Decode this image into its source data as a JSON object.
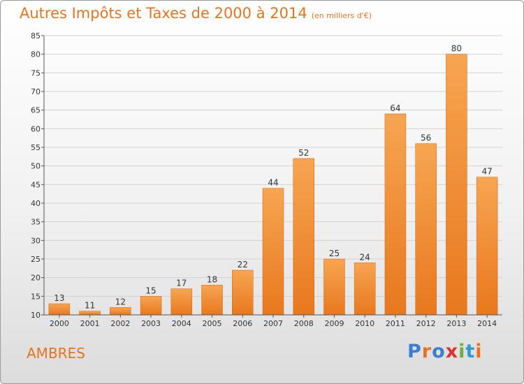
{
  "header": {
    "title": "Autres Impôts et Taxes de 2000 à 2014",
    "unit": "(en milliers d'€)"
  },
  "footer": {
    "commune": "AMBRES",
    "logo": "Proxiti"
  },
  "colors": {
    "bar_top": "#f7a552",
    "bar_bottom": "#e8781e",
    "accent": "#e8731e",
    "grid": "#d2d2d2",
    "logo": [
      "#3b7fd0",
      "#e8731e",
      "#3b7fd0",
      "#e0312d",
      "#6bb138",
      "#2e9ad6",
      "#e8731e"
    ]
  },
  "chart_data": {
    "type": "bar",
    "categories": [
      "2000",
      "2001",
      "2002",
      "2003",
      "2004",
      "2005",
      "2006",
      "2007",
      "2008",
      "2009",
      "2010",
      "2011",
      "2012",
      "2013",
      "2014"
    ],
    "values": [
      13,
      11,
      12,
      15,
      17,
      18,
      22,
      44,
      52,
      25,
      24,
      64,
      56,
      80,
      47
    ],
    "ylim": [
      10,
      85
    ],
    "yticks": [
      10,
      15,
      20,
      25,
      30,
      35,
      40,
      45,
      50,
      55,
      60,
      65,
      70,
      75,
      80,
      85
    ],
    "grid": true
  }
}
